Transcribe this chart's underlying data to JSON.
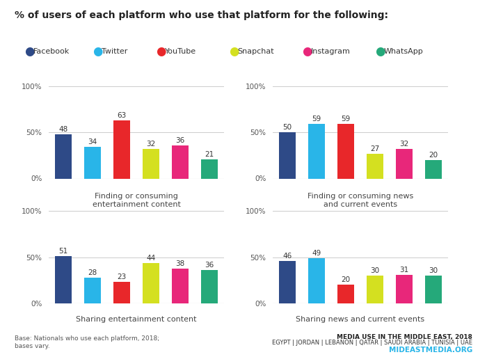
{
  "title": "% of users of each platform who use that platform for the following:",
  "platforms": [
    "Facebook",
    "Twitter",
    "YouTube",
    "Snapchat",
    "Instagram",
    "WhatsApp"
  ],
  "colors": [
    "#2e4a87",
    "#29b5e8",
    "#e8272a",
    "#d4e020",
    "#e8277a",
    "#25a97a"
  ],
  "charts": [
    {
      "label": "Finding or consuming\nentertainment content",
      "values": [
        48,
        34,
        63,
        32,
        36,
        21
      ]
    },
    {
      "label": "Finding or consuming news\nand current events",
      "values": [
        50,
        59,
        59,
        27,
        32,
        20
      ]
    },
    {
      "label": "Sharing entertainment content",
      "values": [
        51,
        28,
        23,
        44,
        38,
        36
      ]
    },
    {
      "label": "Sharing news and current events",
      "values": [
        46,
        49,
        20,
        30,
        31,
        30
      ]
    }
  ],
  "footer_left": "Base: Nationals who use each platform, 2018;\nbases vary.",
  "footer_right_line1": "MEDIA USE IN THE MIDDLE EAST, 2018",
  "footer_right_line2": "EGYPT | JORDAN | LEBANON | QATAR | SAUDI ARABIA | TUNISIA | UAE",
  "footer_right_line3": "MIDEASTMEDIA.ORG",
  "footer_right_line3_color": "#29b5e8",
  "background_color": "#ffffff"
}
